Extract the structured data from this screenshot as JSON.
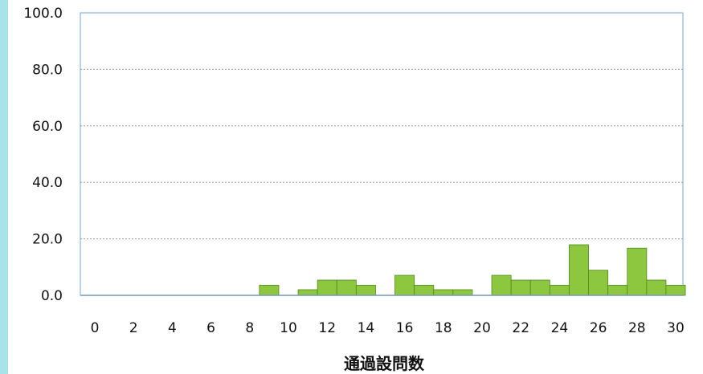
{
  "chart_data": {
    "type": "bar",
    "title": "",
    "xlabel": "通過設問数",
    "ylabel": "",
    "x": [
      0,
      1,
      2,
      3,
      4,
      5,
      6,
      7,
      8,
      9,
      10,
      11,
      12,
      13,
      14,
      15,
      16,
      17,
      18,
      19,
      20,
      21,
      22,
      23,
      24,
      25,
      26,
      27,
      28,
      29,
      30
    ],
    "values": [
      0,
      0,
      0,
      0,
      0,
      0,
      0,
      0,
      0,
      3.6,
      0,
      2.0,
      5.4,
      5.4,
      3.6,
      0,
      7.1,
      3.6,
      2.0,
      2.0,
      0,
      7.1,
      5.4,
      5.4,
      3.6,
      17.9,
      8.9,
      3.6,
      16.7,
      5.4,
      3.6
    ],
    "xlim": [
      0,
      30
    ],
    "ylim": [
      0,
      100
    ],
    "x_ticks": [
      "0",
      "2",
      "4",
      "6",
      "8",
      "10",
      "12",
      "14",
      "16",
      "18",
      "20",
      "22",
      "24",
      "26",
      "28",
      "30"
    ],
    "y_ticks": [
      "0.0",
      "20.0",
      "40.0",
      "60.0",
      "80.0",
      "100.0"
    ],
    "grid": true,
    "legend": "none",
    "colors": {
      "bar_fill": "#8dc63f",
      "bar_stroke": "#4f8a1e",
      "plot_border": "#8fb3d9",
      "grid": "#9a9a9a",
      "baseline": "#7a9cc6"
    }
  }
}
